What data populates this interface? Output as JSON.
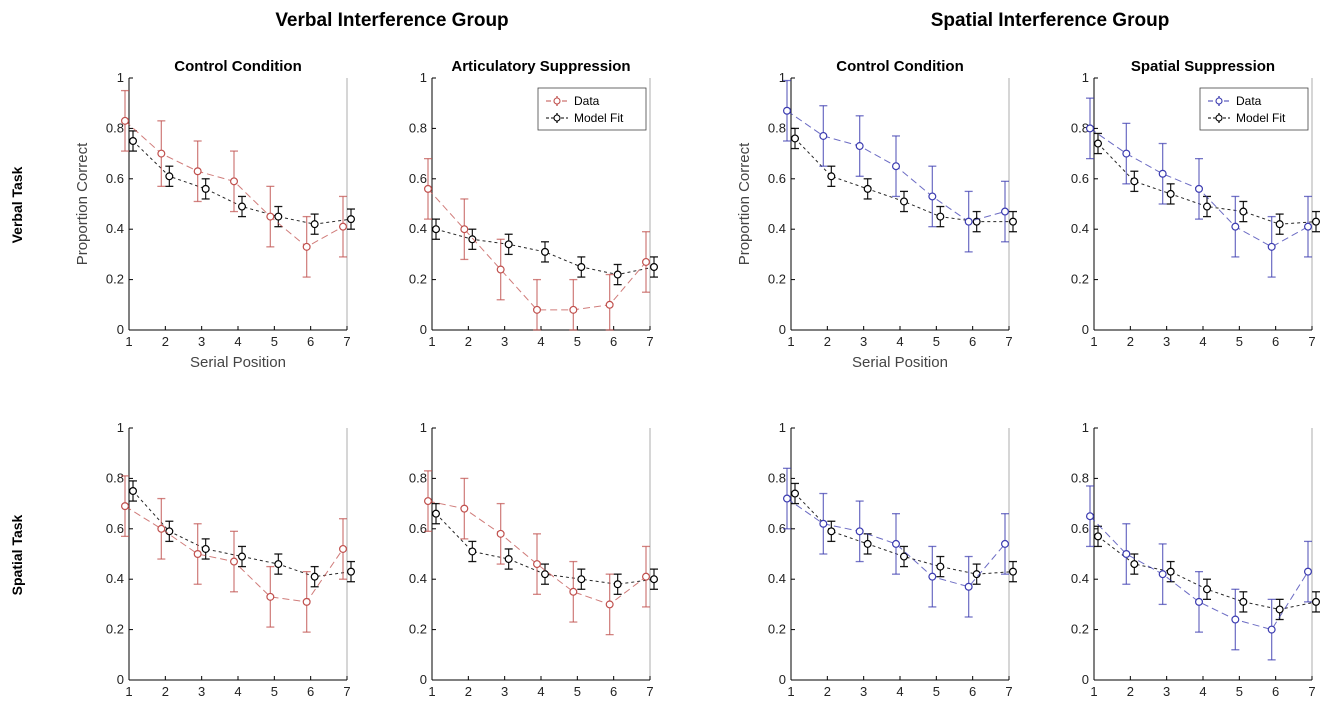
{
  "groups": {
    "verbal": {
      "title": "Verbal Interference Group"
    },
    "spatial": {
      "title": "Spatial Interference Group"
    }
  },
  "rows": {
    "verbal_task": "Verbal Task",
    "spatial_task": "Spatial Task"
  },
  "colors": {
    "verbal_data": "#c0504d",
    "spatial_data": "#3b3bb0",
    "model": "#000000"
  },
  "chart_data": [
    {
      "type": "line",
      "title": "Control Condition",
      "xlabel": "Serial Position",
      "ylabel": "Proportion Correct",
      "x": [
        1,
        2,
        3,
        4,
        5,
        6,
        7
      ],
      "ylim": [
        0,
        1
      ],
      "yticks": [
        "0",
        "0.2",
        "0.4",
        "0.6",
        "0.8",
        "1"
      ],
      "legend": false,
      "series": [
        {
          "name": "Data",
          "values": [
            0.83,
            0.7,
            0.63,
            0.59,
            0.45,
            0.33,
            0.41
          ],
          "err": [
            0.12,
            0.13,
            0.12,
            0.12,
            0.12,
            0.12,
            0.12
          ]
        },
        {
          "name": "Model Fit",
          "values": [
            0.75,
            0.61,
            0.56,
            0.49,
            0.45,
            0.42,
            0.44
          ],
          "err": [
            0.04,
            0.04,
            0.04,
            0.04,
            0.04,
            0.04,
            0.04
          ]
        }
      ]
    },
    {
      "type": "line",
      "title": "Articulatory Suppression",
      "xlabel": "",
      "ylabel": "",
      "x": [
        1,
        2,
        3,
        4,
        5,
        6,
        7
      ],
      "ylim": [
        0,
        1
      ],
      "yticks": [
        "0",
        "0.2",
        "0.4",
        "0.6",
        "0.8",
        "1"
      ],
      "legend": true,
      "legend_position": "top-right",
      "series": [
        {
          "name": "Data",
          "values": [
            0.56,
            0.4,
            0.24,
            0.08,
            0.08,
            0.1,
            0.27
          ],
          "err": [
            0.12,
            0.12,
            0.12,
            0.12,
            0.12,
            0.12,
            0.12
          ]
        },
        {
          "name": "Model Fit",
          "values": [
            0.4,
            0.36,
            0.34,
            0.31,
            0.25,
            0.22,
            0.25
          ],
          "err": [
            0.04,
            0.04,
            0.04,
            0.04,
            0.04,
            0.04,
            0.04
          ]
        }
      ]
    },
    {
      "type": "line",
      "title": "Control Condition",
      "xlabel": "Serial Position",
      "ylabel": "Proportion Correct",
      "x": [
        1,
        2,
        3,
        4,
        5,
        6,
        7
      ],
      "ylim": [
        0,
        1
      ],
      "yticks": [
        "0",
        "0.2",
        "0.4",
        "0.6",
        "0.8",
        "1"
      ],
      "legend": false,
      "series": [
        {
          "name": "Data",
          "values": [
            0.87,
            0.77,
            0.73,
            0.65,
            0.53,
            0.43,
            0.47
          ],
          "err": [
            0.12,
            0.12,
            0.12,
            0.12,
            0.12,
            0.12,
            0.12
          ]
        },
        {
          "name": "Model Fit",
          "values": [
            0.76,
            0.61,
            0.56,
            0.51,
            0.45,
            0.43,
            0.43
          ],
          "err": [
            0.04,
            0.04,
            0.04,
            0.04,
            0.04,
            0.04,
            0.04
          ]
        }
      ]
    },
    {
      "type": "line",
      "title": "Spatial Suppression",
      "xlabel": "",
      "ylabel": "",
      "x": [
        1,
        2,
        3,
        4,
        5,
        6,
        7
      ],
      "ylim": [
        0,
        1
      ],
      "yticks": [
        "0",
        "0.2",
        "0.4",
        "0.6",
        "0.8",
        "1"
      ],
      "legend": true,
      "legend_position": "top-right",
      "series": [
        {
          "name": "Data",
          "values": [
            0.8,
            0.7,
            0.62,
            0.56,
            0.41,
            0.33,
            0.41
          ],
          "err": [
            0.12,
            0.12,
            0.12,
            0.12,
            0.12,
            0.12,
            0.12
          ]
        },
        {
          "name": "Model Fit",
          "values": [
            0.74,
            0.59,
            0.54,
            0.49,
            0.47,
            0.42,
            0.43
          ],
          "err": [
            0.04,
            0.04,
            0.04,
            0.04,
            0.04,
            0.04,
            0.04
          ]
        }
      ]
    },
    {
      "type": "line",
      "title": "",
      "xlabel": "",
      "ylabel": "",
      "x": [
        1,
        2,
        3,
        4,
        5,
        6,
        7
      ],
      "ylim": [
        0,
        1
      ],
      "yticks": [
        "0",
        "0.2",
        "0.4",
        "0.6",
        "0.8",
        "1"
      ],
      "legend": false,
      "series": [
        {
          "name": "Data",
          "values": [
            0.69,
            0.6,
            0.5,
            0.47,
            0.33,
            0.31,
            0.52
          ],
          "err": [
            0.12,
            0.12,
            0.12,
            0.12,
            0.12,
            0.12,
            0.12
          ]
        },
        {
          "name": "Model Fit",
          "values": [
            0.75,
            0.59,
            0.52,
            0.49,
            0.46,
            0.41,
            0.43
          ],
          "err": [
            0.04,
            0.04,
            0.04,
            0.04,
            0.04,
            0.04,
            0.04
          ]
        }
      ]
    },
    {
      "type": "line",
      "title": "",
      "xlabel": "",
      "ylabel": "",
      "x": [
        1,
        2,
        3,
        4,
        5,
        6,
        7
      ],
      "ylim": [
        0,
        1
      ],
      "yticks": [
        "0",
        "0.2",
        "0.4",
        "0.6",
        "0.8",
        "1"
      ],
      "legend": false,
      "series": [
        {
          "name": "Data",
          "values": [
            0.71,
            0.68,
            0.58,
            0.46,
            0.35,
            0.3,
            0.41
          ],
          "err": [
            0.12,
            0.12,
            0.12,
            0.12,
            0.12,
            0.12,
            0.12
          ]
        },
        {
          "name": "Model Fit",
          "values": [
            0.66,
            0.51,
            0.48,
            0.42,
            0.4,
            0.38,
            0.4
          ],
          "err": [
            0.04,
            0.04,
            0.04,
            0.04,
            0.04,
            0.04,
            0.04
          ]
        }
      ]
    },
    {
      "type": "line",
      "title": "",
      "xlabel": "",
      "ylabel": "",
      "x": [
        1,
        2,
        3,
        4,
        5,
        6,
        7
      ],
      "ylim": [
        0,
        1
      ],
      "yticks": [
        "0",
        "0.2",
        "0.4",
        "0.6",
        "0.8",
        "1"
      ],
      "legend": false,
      "series": [
        {
          "name": "Data",
          "values": [
            0.72,
            0.62,
            0.59,
            0.54,
            0.41,
            0.37,
            0.54
          ],
          "err": [
            0.12,
            0.12,
            0.12,
            0.12,
            0.12,
            0.12,
            0.12
          ]
        },
        {
          "name": "Model Fit",
          "values": [
            0.74,
            0.59,
            0.54,
            0.49,
            0.45,
            0.42,
            0.43
          ],
          "err": [
            0.04,
            0.04,
            0.04,
            0.04,
            0.04,
            0.04,
            0.04
          ]
        }
      ]
    },
    {
      "type": "line",
      "title": "",
      "xlabel": "",
      "ylabel": "",
      "x": [
        1,
        2,
        3,
        4,
        5,
        6,
        7
      ],
      "ylim": [
        0,
        1
      ],
      "yticks": [
        "0",
        "0.2",
        "0.4",
        "0.6",
        "0.8",
        "1"
      ],
      "legend": false,
      "series": [
        {
          "name": "Data",
          "values": [
            0.65,
            0.5,
            0.42,
            0.31,
            0.24,
            0.2,
            0.43
          ],
          "err": [
            0.12,
            0.12,
            0.12,
            0.12,
            0.12,
            0.12,
            0.12
          ]
        },
        {
          "name": "Model Fit",
          "values": [
            0.57,
            0.46,
            0.43,
            0.36,
            0.31,
            0.28,
            0.31
          ],
          "err": [
            0.04,
            0.04,
            0.04,
            0.04,
            0.04,
            0.04,
            0.04
          ]
        }
      ]
    }
  ]
}
